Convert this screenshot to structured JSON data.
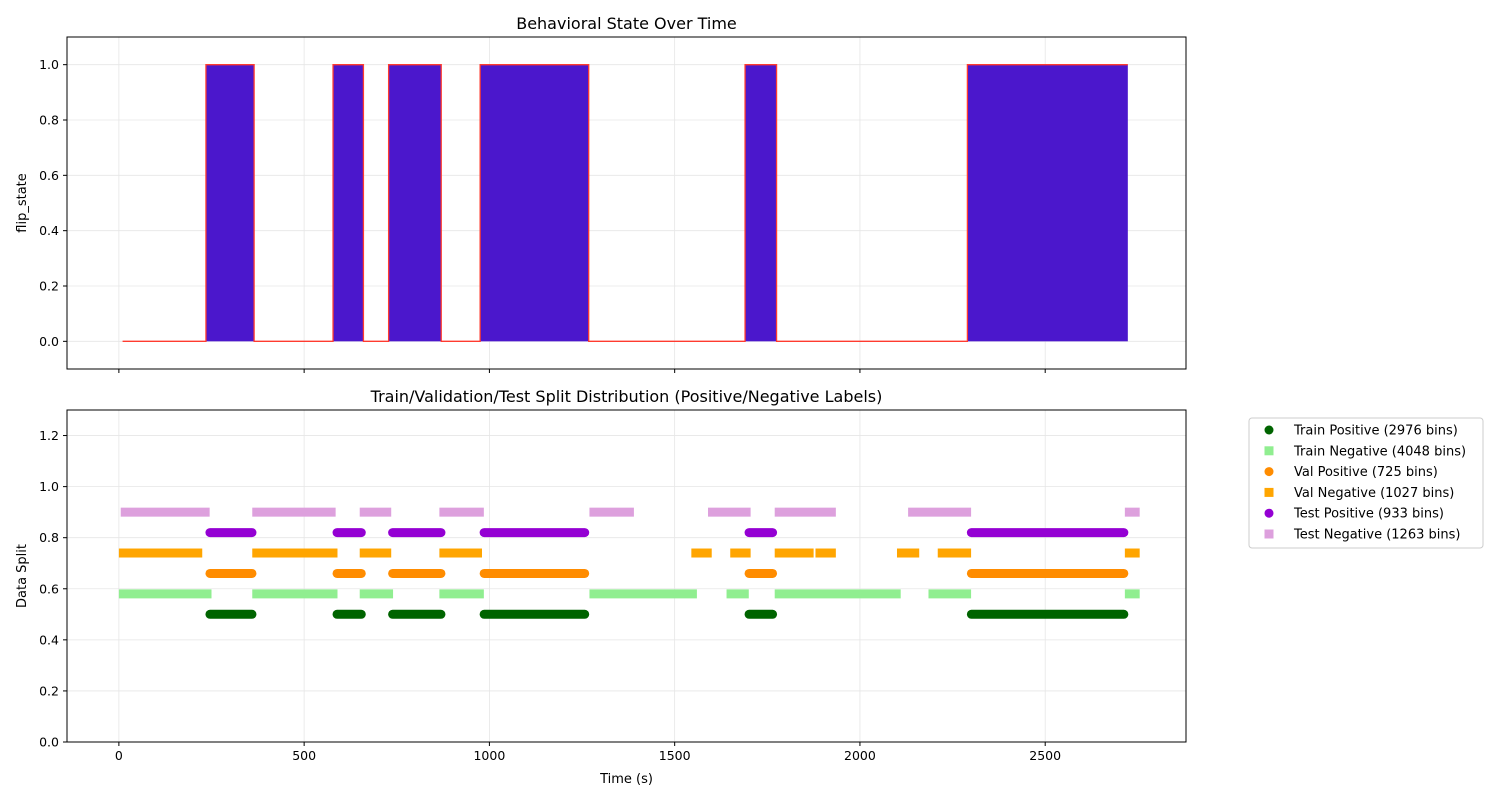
{
  "chart_data": [
    {
      "type": "area",
      "title": "Behavioral State Over Time",
      "xlabel": "",
      "ylabel": "flip_state",
      "xlim": [
        -140,
        2880
      ],
      "ylim": [
        -0.1,
        1.1
      ],
      "x_ticks": [
        0,
        500,
        1000,
        1500,
        2000,
        2500
      ],
      "x_tick_labels_shown": false,
      "y_ticks": [
        0.0,
        0.2,
        0.4,
        0.6,
        0.8,
        1.0
      ],
      "y_tick_labels": [
        "0.0",
        "0.2",
        "0.4",
        "0.6",
        "0.8",
        "1.0"
      ],
      "grid": true,
      "line_color": "#ff3b2f",
      "fill_color": "#4b17cc",
      "series": [
        {
          "x": [
            10,
            235,
            235,
            365,
            365,
            578,
            578,
            660,
            660,
            728,
            728,
            870,
            870,
            975,
            975,
            1268,
            1268,
            1690,
            1690,
            1775,
            1775,
            2290,
            2290,
            2723
          ],
          "values": [
            0,
            0,
            1,
            1,
            0,
            0,
            1,
            1,
            0,
            0,
            1,
            1,
            0,
            0,
            1,
            1,
            0,
            0,
            1,
            1,
            0,
            0,
            1,
            1
          ]
        }
      ],
      "active_intervals": [
        [
          235,
          365
        ],
        [
          578,
          660
        ],
        [
          728,
          870
        ],
        [
          975,
          1268
        ],
        [
          1690,
          1775
        ],
        [
          2290,
          2723
        ]
      ]
    },
    {
      "type": "scatter",
      "title": "Train/Validation/Test Split Distribution (Positive/Negative Labels)",
      "xlabel": "Time (s)",
      "ylabel": "Data Split",
      "xlim": [
        -140,
        2880
      ],
      "ylim": [
        0.0,
        1.3
      ],
      "x_ticks": [
        0,
        500,
        1000,
        1500,
        2000,
        2500
      ],
      "x_tick_labels": [
        "0",
        "500",
        "1000",
        "1500",
        "2000",
        "2500"
      ],
      "y_ticks": [
        0.0,
        0.2,
        0.4,
        0.6,
        0.8,
        1.0,
        1.2
      ],
      "y_tick_labels": [
        "0.0",
        "0.2",
        "0.4",
        "0.6",
        "0.8",
        "1.0",
        "1.2"
      ],
      "grid": true,
      "legend_position": "outside-right-top",
      "series": [
        {
          "name": "Train Positive (2976 bins)",
          "marker": "circle",
          "color": "#006400",
          "y": 0.5,
          "segments": [
            [
              235,
              370
            ],
            [
              578,
              665
            ],
            [
              728,
              880
            ],
            [
              975,
              1268
            ],
            [
              1690,
              1775
            ],
            [
              2290,
              2723
            ]
          ]
        },
        {
          "name": "Train Negative (4048 bins)",
          "marker": "square",
          "color": "#90ee90",
          "y": 0.58,
          "segments": [
            [
              0,
              250
            ],
            [
              360,
              590
            ],
            [
              650,
              740
            ],
            [
              865,
              985
            ],
            [
              1270,
              1560
            ],
            [
              1640,
              1700
            ],
            [
              1770,
              2110
            ],
            [
              2185,
              2300
            ],
            [
              2715,
              2755
            ]
          ]
        },
        {
          "name": "Val Positive (725 bins)",
          "marker": "circle",
          "color": "#ff8c00",
          "y": 0.66,
          "segments": [
            [
              235,
              370
            ],
            [
              578,
              665
            ],
            [
              728,
              880
            ],
            [
              975,
              1268
            ],
            [
              1690,
              1775
            ],
            [
              2290,
              2723
            ]
          ]
        },
        {
          "name": "Val Negative (1027 bins)",
          "marker": "square",
          "color": "#ffa500",
          "y": 0.74,
          "segments": [
            [
              0,
              225
            ],
            [
              360,
              590
            ],
            [
              650,
              735
            ],
            [
              865,
              980
            ],
            [
              1545,
              1600
            ],
            [
              1650,
              1705
            ],
            [
              1770,
              1875
            ],
            [
              1880,
              1935
            ],
            [
              2100,
              2160
            ],
            [
              2210,
              2300
            ],
            [
              2715,
              2755
            ]
          ]
        },
        {
          "name": "Test Positive (933 bins)",
          "marker": "circle",
          "color": "#9400d3",
          "y": 0.82,
          "segments": [
            [
              235,
              370
            ],
            [
              578,
              665
            ],
            [
              728,
              880
            ],
            [
              975,
              1268
            ],
            [
              1690,
              1775
            ],
            [
              2290,
              2723
            ]
          ]
        },
        {
          "name": "Test Negative (1263 bins)",
          "marker": "square",
          "color": "#dda0dd",
          "y": 0.9,
          "segments": [
            [
              5,
              245
            ],
            [
              360,
              585
            ],
            [
              650,
              735
            ],
            [
              865,
              985
            ],
            [
              1270,
              1390
            ],
            [
              1590,
              1705
            ],
            [
              1770,
              1935
            ],
            [
              2130,
              2300
            ],
            [
              2715,
              2755
            ]
          ]
        }
      ]
    }
  ]
}
